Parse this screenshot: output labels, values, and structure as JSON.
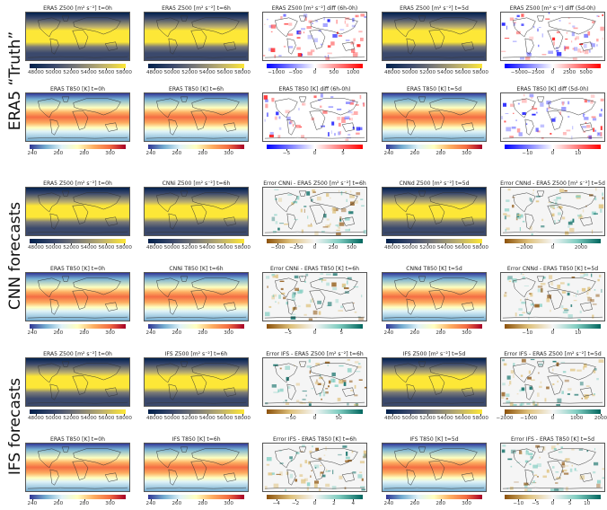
{
  "group_labels": [
    "ERA5 “Truth”",
    "CNN forecasts",
    "IFS forecasts"
  ],
  "colormaps": {
    "z500": [
      "#00204c",
      "#3b496c",
      "#7c7b78",
      "#bcaf6f",
      "#fde737"
    ],
    "t850": [
      "#313695",
      "#74add1",
      "#e0f3f8",
      "#ffffbf",
      "#fdae61",
      "#f46d43",
      "#a50026"
    ],
    "diff": [
      "#0000ff",
      "#8080ff",
      "#ffffff",
      "#ff8080",
      "#ff0000"
    ],
    "error": [
      "#8c510a",
      "#dfc27d",
      "#f5f5f5",
      "#80cdc1",
      "#01665e"
    ]
  },
  "rows": [
    {
      "group": 0,
      "panels": [
        {
          "title": "ERA5 Z500 [m² s⁻²] t=0h",
          "field": "z500",
          "cmap": "z500",
          "vmin": 47300,
          "vmax": 58200,
          "ticks": [
            48000,
            50000,
            52000,
            54000,
            56000,
            58000
          ]
        },
        {
          "title": "ERA5 Z500 [m² s⁻²] t=6h",
          "field": "z500",
          "cmap": "z500",
          "vmin": 47300,
          "vmax": 58200,
          "ticks": [
            48000,
            50000,
            52000,
            54000,
            56000,
            58000
          ]
        },
        {
          "title": "ERA5 Z500 [m² s⁻²] diff (6h-0h)",
          "field": "noise",
          "cmap": "diff",
          "vmin": -1250,
          "vmax": 1250,
          "ticks": [
            -1000,
            -500,
            0,
            500,
            1000
          ]
        },
        {
          "title": "ERA5 Z500 [m² s⁻²] t=5d",
          "field": "z500",
          "cmap": "z500",
          "vmin": 47300,
          "vmax": 58200,
          "ticks": [
            48000,
            50000,
            52000,
            54000,
            56000,
            58000
          ]
        },
        {
          "title": "ERA5 Z500 [m² s⁻²] diff (5d-0h)",
          "field": "noise",
          "cmap": "diff",
          "vmin": -7200,
          "vmax": 7200,
          "ticks": [
            -5000,
            -2500,
            0,
            2500,
            5000
          ]
        }
      ]
    },
    {
      "group": 0,
      "panels": [
        {
          "title": "ERA5 T850 [K] t=0h",
          "field": "t850",
          "cmap": "t850",
          "vmin": 238,
          "vmax": 312,
          "ticks": [
            240,
            260,
            280,
            300
          ]
        },
        {
          "title": "ERA5 T850 [K] t=6h",
          "field": "t850",
          "cmap": "t850",
          "vmin": 238,
          "vmax": 312,
          "ticks": [
            240,
            260,
            280,
            300
          ]
        },
        {
          "title": "ERA5 T850 [K] diff (6h-0h)",
          "field": "noise",
          "cmap": "diff",
          "vmin": -8.5,
          "vmax": 8.5,
          "ticks": [
            -5,
            0,
            5
          ]
        },
        {
          "title": "ERA5 T850 [K] t=5d",
          "field": "t850",
          "cmap": "t850",
          "vmin": 238,
          "vmax": 312,
          "ticks": [
            240,
            260,
            280,
            300
          ]
        },
        {
          "title": "ERA5 T850 [K] diff (5d-0h)",
          "field": "noise",
          "cmap": "diff",
          "vmin": -19,
          "vmax": 19,
          "ticks": [
            -10,
            0,
            10
          ]
        }
      ]
    },
    {
      "group": 1,
      "panels": [
        {
          "title": "ERA5 Z500 [m² s⁻²] t=0h",
          "field": "z500",
          "cmap": "z500",
          "vmin": 47300,
          "vmax": 58200,
          "ticks": [
            48000,
            50000,
            52000,
            54000,
            56000,
            58000
          ]
        },
        {
          "title": "CNNi Z500 [m² s⁻²] t=6h",
          "field": "z500",
          "cmap": "z500",
          "vmin": 47300,
          "vmax": 58200,
          "ticks": [
            48000,
            50000,
            52000,
            54000,
            56000,
            58000
          ]
        },
        {
          "title": "Error CNNi - ERA5 Z500 [m² s⁻²] t=6h",
          "field": "noise",
          "cmap": "error",
          "vmin": -650,
          "vmax": 650,
          "ticks": [
            -500,
            -250,
            0,
            250,
            500
          ]
        },
        {
          "title": "CNNd Z500 [m² s⁻²] t=5d",
          "field": "z500",
          "cmap": "z500",
          "vmin": 47300,
          "vmax": 58200,
          "ticks": [
            48000,
            50000,
            52000,
            54000,
            56000,
            58000
          ]
        },
        {
          "title": "Error CNNd - ERA5 Z500 [m² s⁻²] t=5d",
          "field": "noise",
          "cmap": "error",
          "vmin": -3400,
          "vmax": 3400,
          "ticks": [
            -2000,
            0,
            2000
          ]
        }
      ]
    },
    {
      "group": 1,
      "panels": [
        {
          "title": "ERA5 T850 [K] t=0h",
          "field": "t850",
          "cmap": "t850",
          "vmin": 238,
          "vmax": 312,
          "ticks": [
            240,
            260,
            280,
            300
          ]
        },
        {
          "title": "CNNi T850 [K] t=6h",
          "field": "t850",
          "cmap": "t850",
          "vmin": 238,
          "vmax": 312,
          "ticks": [
            240,
            260,
            280,
            300
          ]
        },
        {
          "title": "Error CNNi - ERA5 T850 [K] t=6h",
          "field": "noise",
          "cmap": "error",
          "vmin": -9,
          "vmax": 9,
          "ticks": [
            -5,
            0,
            5
          ]
        },
        {
          "title": "CNNd T850 [K] t=5d",
          "field": "t850",
          "cmap": "t850",
          "vmin": 238,
          "vmax": 312,
          "ticks": [
            240,
            260,
            280,
            300
          ]
        },
        {
          "title": "Error CNNd - ERA5 T850 [K] t=5d",
          "field": "noise",
          "cmap": "error",
          "vmin": -19,
          "vmax": 19,
          "ticks": [
            -10,
            0,
            10
          ]
        }
      ]
    },
    {
      "group": 2,
      "panels": [
        {
          "title": "ERA5 Z500 [m² s⁻²] t=0h",
          "field": "z500",
          "cmap": "z500",
          "vmin": 47300,
          "vmax": 58200,
          "ticks": [
            48000,
            50000,
            52000,
            54000,
            56000,
            58000
          ]
        },
        {
          "title": "IFS Z500 [m² s⁻²] t=6h",
          "field": "z500",
          "cmap": "z500",
          "vmin": 47300,
          "vmax": 58200,
          "ticks": [
            48000,
            50000,
            52000,
            54000,
            56000,
            58000
          ]
        },
        {
          "title": "Error IFS - ERA5 Z500 [m² s⁻²] t=6h",
          "field": "noise",
          "cmap": "error",
          "vmin": -100,
          "vmax": 100,
          "ticks": [
            -50,
            0,
            50
          ]
        },
        {
          "title": "IFS Z500 [m² s⁻²] t=5d",
          "field": "z500",
          "cmap": "z500",
          "vmin": 47300,
          "vmax": 58200,
          "ticks": [
            48000,
            50000,
            52000,
            54000,
            56000,
            58000
          ]
        },
        {
          "title": "Error IFS - ERA5 Z500 [m² s⁻²] t=5d",
          "field": "noise",
          "cmap": "error",
          "vmin": -2000,
          "vmax": 2000,
          "ticks": [
            -2000,
            -1000,
            0,
            1000,
            2000
          ]
        }
      ]
    },
    {
      "group": 2,
      "panels": [
        {
          "title": "ERA5 T850 [K] t=0h",
          "field": "t850",
          "cmap": "t850",
          "vmin": 238,
          "vmax": 312,
          "ticks": [
            240,
            260,
            280,
            300
          ]
        },
        {
          "title": "IFS T850 [K] t=6h",
          "field": "t850",
          "cmap": "t850",
          "vmin": 238,
          "vmax": 312,
          "ticks": [
            240,
            260,
            280,
            300
          ]
        },
        {
          "title": "Error IFS - ERA5 T850 [K] t=6h",
          "field": "noise",
          "cmap": "error",
          "vmin": -5,
          "vmax": 5,
          "ticks": [
            -4,
            -2,
            0,
            2,
            4
          ]
        },
        {
          "title": "IFS T850 [K] t=5d",
          "field": "t850",
          "cmap": "t850",
          "vmin": 238,
          "vmax": 312,
          "ticks": [
            240,
            260,
            280,
            300
          ]
        },
        {
          "title": "Error IFS - ERA5 T850 [K] t=5d",
          "field": "noise",
          "cmap": "error",
          "vmin": -14,
          "vmax": 14,
          "ticks": [
            -10,
            -5,
            0,
            5,
            10
          ]
        }
      ]
    }
  ]
}
